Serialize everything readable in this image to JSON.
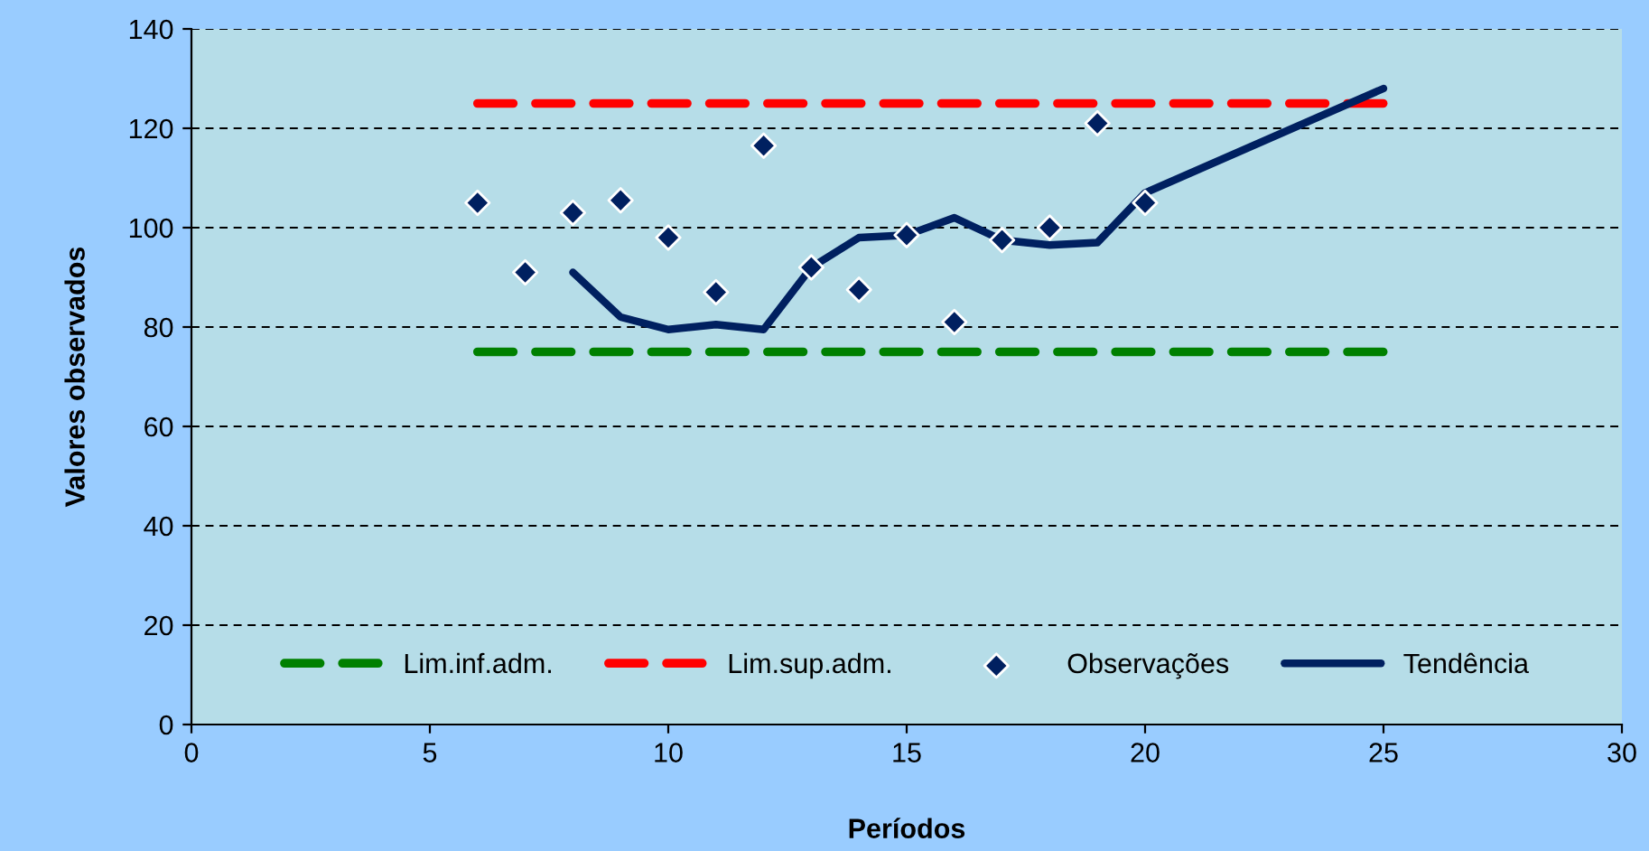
{
  "chart_data": {
    "type": "line",
    "xlabel": "Períodos",
    "ylabel": "Valores observados",
    "xlim": [
      0,
      30
    ],
    "xticks": [
      0,
      5,
      10,
      15,
      20,
      25,
      30
    ],
    "ylim": [
      0,
      140
    ],
    "yticks": [
      0,
      20,
      40,
      60,
      80,
      100,
      120,
      140
    ],
    "grid": "y",
    "legend": "bottom",
    "series": [
      {
        "name": "Lim.inf.adm.",
        "color": "#008000",
        "line_style": "dashed",
        "x": [
          6,
          25
        ],
        "values": [
          75,
          75
        ]
      },
      {
        "name": "Lim.sup.adm.",
        "color": "#ff0000",
        "line_style": "dashed",
        "x": [
          6,
          25
        ],
        "values": [
          125,
          125
        ]
      },
      {
        "name": "Observações",
        "type": "scatter",
        "color": "#002060",
        "marker": "diamond",
        "x": [
          6,
          7,
          8,
          9,
          10,
          11,
          12,
          13,
          14,
          15,
          16,
          17,
          18,
          19,
          20
        ],
        "values": [
          105,
          91,
          103,
          105.5,
          98,
          87,
          116.5,
          92,
          87.5,
          98.5,
          81,
          97.5,
          100,
          121,
          105
        ]
      },
      {
        "name": "Tendência",
        "color": "#002060",
        "line_style": "solid",
        "x": [
          8,
          9,
          10,
          11,
          12,
          13,
          14,
          15,
          16,
          17,
          18,
          19,
          20,
          25
        ],
        "values": [
          91,
          82,
          79.5,
          80.5,
          79.5,
          92,
          98,
          98.5,
          102,
          97.5,
          96.5,
          97,
          107,
          128
        ]
      }
    ]
  }
}
